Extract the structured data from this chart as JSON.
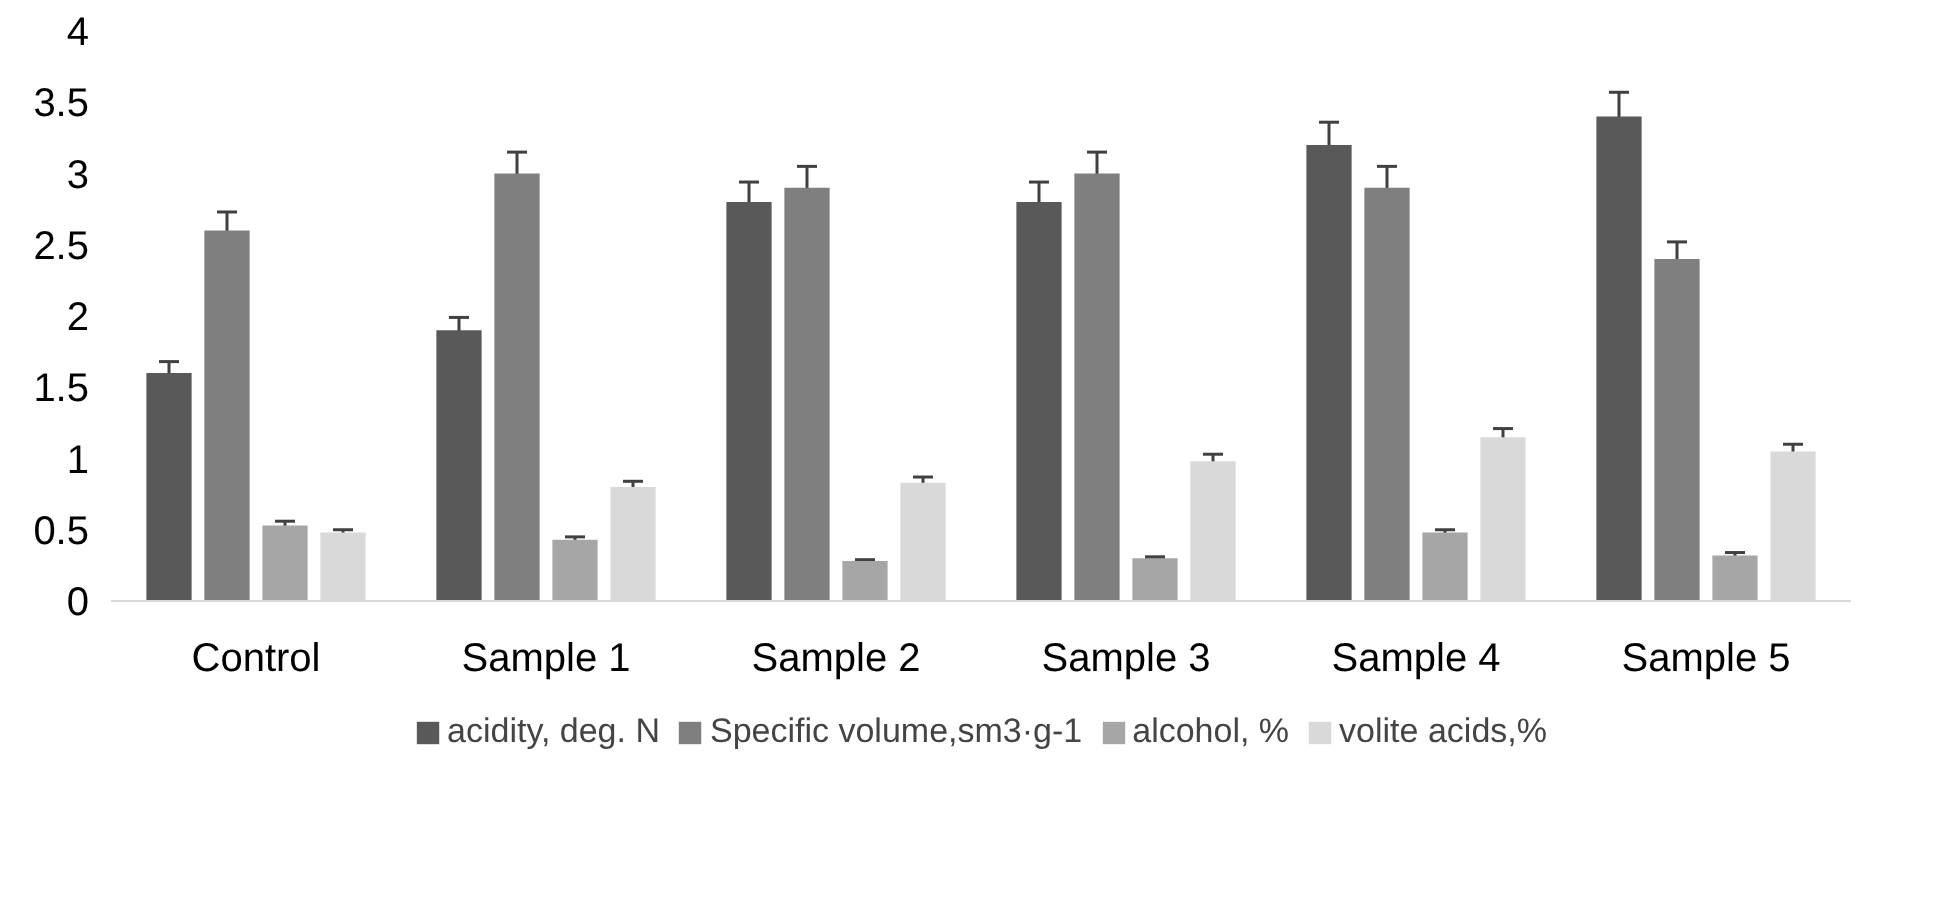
{
  "chart_data": {
    "type": "bar",
    "categories": [
      "Control",
      "Sample 1",
      "Sample 2",
      "Sample 3",
      "Sample 4",
      "Sample 5"
    ],
    "series": [
      {
        "name": "acidity, deg. N",
        "color": "#595959",
        "values": [
          1.6,
          1.9,
          2.8,
          2.8,
          3.2,
          3.4
        ],
        "errors": [
          0.08,
          0.09,
          0.14,
          0.14,
          0.16,
          0.17
        ]
      },
      {
        "name": "Specific volume,sm3·g-1",
        "color": "#7f7f7f",
        "values": [
          2.6,
          3.0,
          2.9,
          3.0,
          2.9,
          2.4
        ],
        "errors": [
          0.13,
          0.15,
          0.15,
          0.15,
          0.15,
          0.12
        ]
      },
      {
        "name": "alcohol, %",
        "color": "#a6a6a6",
        "values": [
          0.53,
          0.43,
          0.28,
          0.3,
          0.48,
          0.32
        ],
        "errors": [
          0.03,
          0.02,
          0.01,
          0.01,
          0.02,
          0.02
        ]
      },
      {
        "name": "volite acids,%",
        "color": "#d9d9d9",
        "values": [
          0.48,
          0.8,
          0.83,
          0.98,
          1.15,
          1.05
        ],
        "errors": [
          0.02,
          0.04,
          0.04,
          0.05,
          0.06,
          0.05
        ]
      }
    ],
    "ylim": [
      0,
      4
    ],
    "yticks": [
      0,
      0.5,
      1,
      1.5,
      2,
      2.5,
      3,
      3.5,
      4
    ],
    "grid": false,
    "legend": "bottom"
  }
}
